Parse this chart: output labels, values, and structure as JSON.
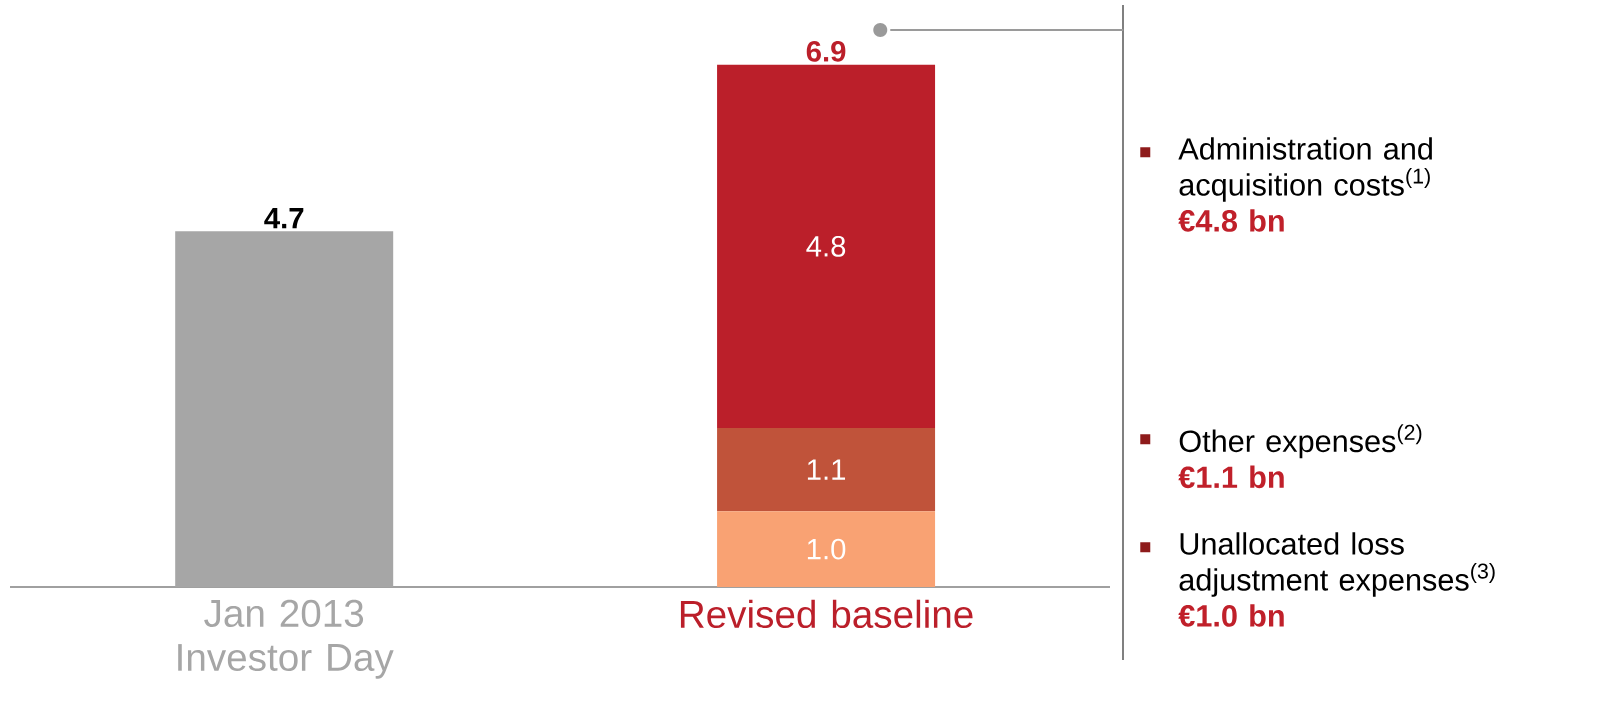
{
  "chart_data": {
    "type": "bar",
    "stacked": true,
    "categories": [
      "Jan 2013 Investor Day",
      "Revised baseline"
    ],
    "series": [
      {
        "color": "#a6a6a6",
        "values": [
          4.7,
          null
        ],
        "value_labels": [
          null,
          null
        ]
      },
      {
        "color": "#f9a273",
        "values": [
          null,
          1.0
        ],
        "value_labels": [
          null,
          "1.0"
        ]
      },
      {
        "color": "#c0533a",
        "values": [
          null,
          1.1
        ],
        "value_labels": [
          null,
          "1.1"
        ]
      },
      {
        "color": "#bb1f2a",
        "values": [
          null,
          4.8
        ],
        "value_labels": [
          null,
          "4.8"
        ]
      }
    ],
    "totals": [
      "4.7",
      "6.9"
    ],
    "annotations": [
      "Administration and acquisition costs$^{(1)}$",
      "€4.8 bn",
      "Other expenses$^{(2)}$",
      "€1.1 bn",
      "Unallocated loss adjustment expenses$^{(3)}$",
      "€1.0 bn"
    ]
  }
}
